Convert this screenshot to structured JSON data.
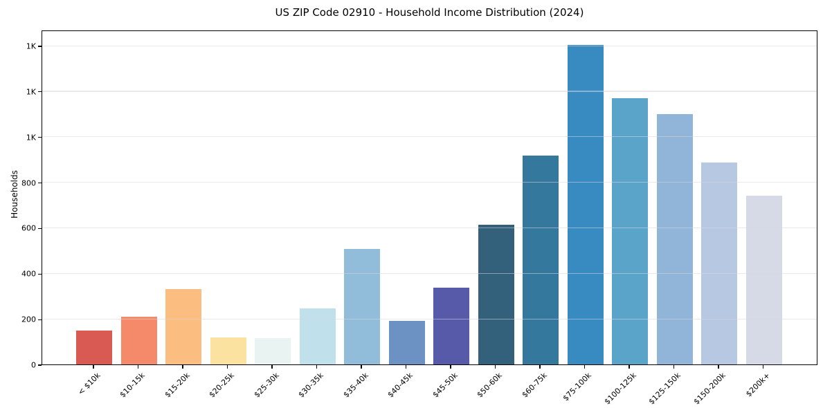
{
  "chart_data": {
    "type": "bar",
    "title": "US ZIP Code 02910 - Household Income Distribution (2024)",
    "xlabel": "",
    "ylabel": "Households",
    "categories": [
      "< $10k",
      "$10-15k",
      "$15-20k",
      "$20-25k",
      "$25-30k",
      "$30-35k",
      "$35-40k",
      "$40-45k",
      "$45-50k",
      "$50-60k",
      "$60-75k",
      "$75-100k",
      "$100-125k",
      "$125-150k",
      "$150-200k",
      "$200k+"
    ],
    "values": [
      148,
      210,
      332,
      118,
      117,
      245,
      508,
      190,
      338,
      615,
      918,
      1402,
      1168,
      1100,
      886,
      742
    ],
    "bar_colors": [
      "#d85a52",
      "#f58a6b",
      "#fbbd80",
      "#fce2a0",
      "#e9f3f2",
      "#c0e0ec",
      "#92bdda",
      "#6b92c2",
      "#575aa8",
      "#33617b",
      "#35789e",
      "#388bc1",
      "#5ba4c9",
      "#90b5d9",
      "#b6c8e2",
      "#d6d9e6"
    ],
    "ylim": [
      0,
      1470
    ],
    "yticks": {
      "values": [
        0,
        200,
        400,
        600,
        800,
        1000,
        1200,
        1400
      ],
      "labels": [
        "0",
        "200",
        "400",
        "600",
        "800",
        "1K",
        "1K",
        "1K"
      ]
    },
    "grid": "horizontal",
    "grid_over_bars": true,
    "legend": "none",
    "spine_color": "#000000",
    "background": "#ffffff"
  }
}
